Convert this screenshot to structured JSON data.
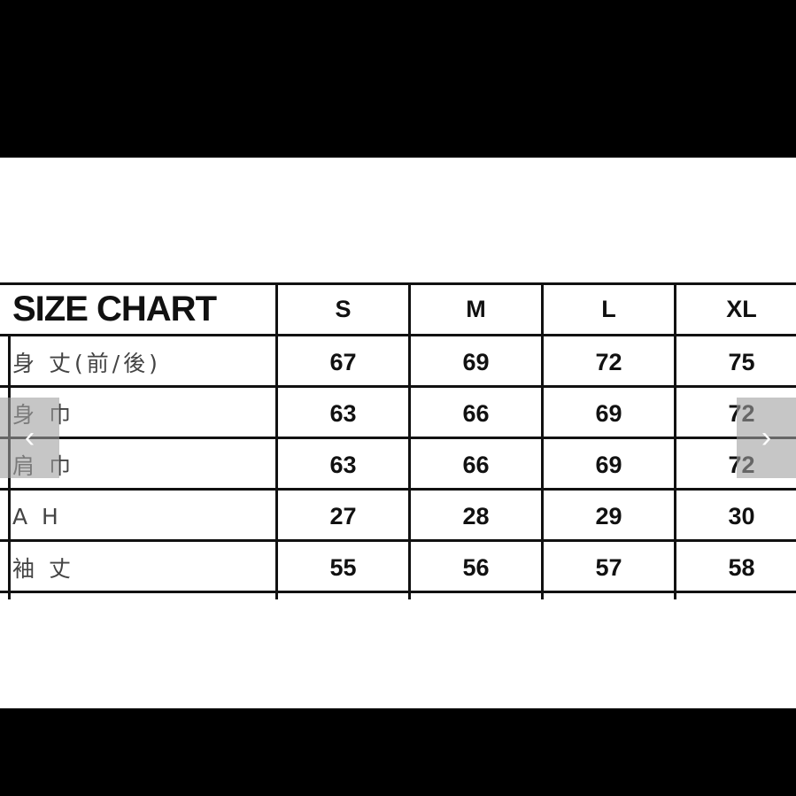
{
  "table": {
    "title": "SIZE CHART",
    "sizes": [
      "S",
      "M",
      "L",
      "XL"
    ],
    "rows": [
      {
        "label": "身 丈(前/後)",
        "values": [
          "67",
          "69",
          "72",
          "75"
        ]
      },
      {
        "label": "身 巾",
        "values": [
          "63",
          "66",
          "69",
          "72"
        ]
      },
      {
        "label": "肩 巾",
        "values": [
          "63",
          "66",
          "69",
          "72"
        ]
      },
      {
        "label": "A H",
        "values": [
          "27",
          "28",
          "29",
          "30"
        ]
      },
      {
        "label": "袖 丈",
        "values": [
          "55",
          "56",
          "57",
          "58"
        ]
      }
    ]
  },
  "nav": {
    "prev_icon": "chevron-left-icon",
    "next_icon": "chevron-right-icon",
    "prev": "‹",
    "next": "›"
  }
}
